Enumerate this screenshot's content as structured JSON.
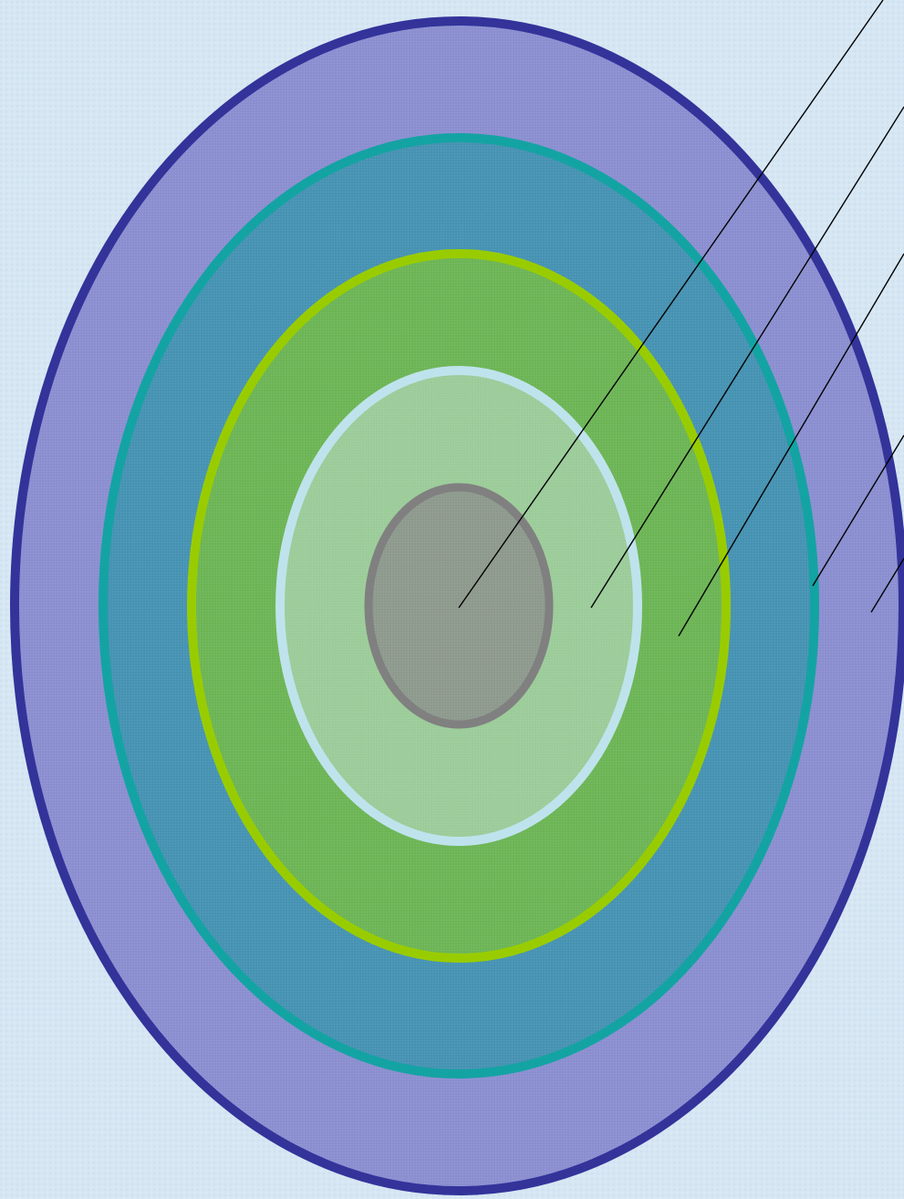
{
  "diagram": {
    "type": "concentric-layers",
    "background_color": "#d6e6f3",
    "layers": [
      {
        "name": "outer-layer",
        "fill": "#8b8fd0",
        "stroke": "#33339a"
      },
      {
        "name": "second-layer",
        "fill": "#4793b3",
        "stroke": "#14a3a3"
      },
      {
        "name": "third-layer",
        "fill": "#6db556",
        "stroke": "#99cc00"
      },
      {
        "name": "fourth-layer",
        "fill": "#9ccc9a",
        "stroke": "#bfe3ec"
      },
      {
        "name": "core-layer",
        "fill": "#8e9a8e",
        "stroke": "#808080"
      }
    ],
    "leader_line_color": "#000000",
    "labels": []
  }
}
